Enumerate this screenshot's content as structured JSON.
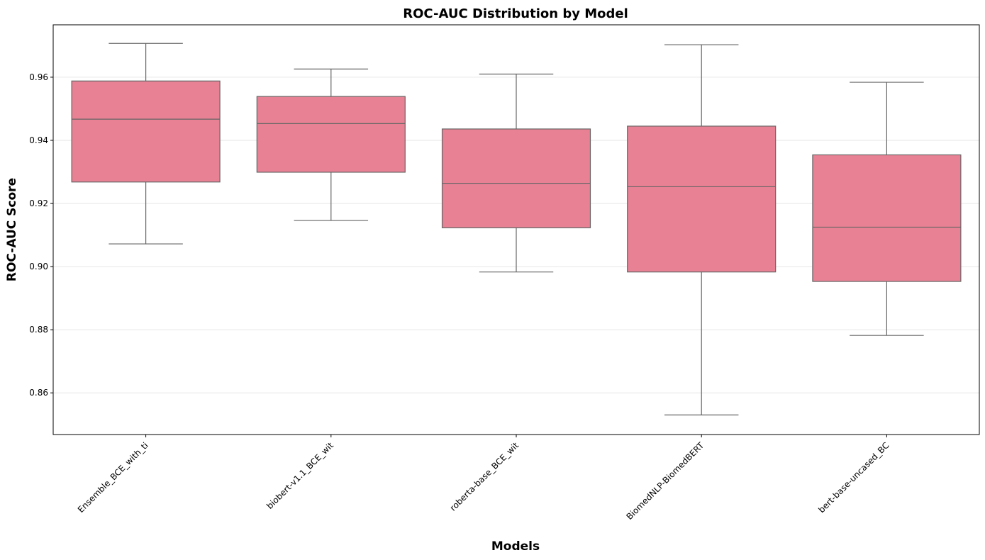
{
  "chart_data": {
    "type": "box",
    "title": "ROC-AUC Distribution by Model",
    "xlabel": "Models",
    "ylabel": "ROC-AUC Score",
    "ylim": [
      0.8468,
      0.9766
    ],
    "yticks": [
      "0.86",
      "0.88",
      "0.90",
      "0.92",
      "0.94",
      "0.96"
    ],
    "ytick_values": [
      0.86,
      0.88,
      0.9,
      0.92,
      0.94,
      0.96
    ],
    "grid": "horizontal",
    "box_color": "#e88194",
    "line_color": "#666666",
    "categories": [
      "Ensemble_BCE_with_ti",
      "biobert-v1.1_BCE_wit",
      "roberta-base_BCE_wit",
      "BiomedNLP-BiomedBERT",
      "bert-base-uncased_BC"
    ],
    "series": [
      {
        "category": "Ensemble_BCE_with_ti",
        "whisker_low": 0.9072,
        "q1": 0.9268,
        "median": 0.9467,
        "q3": 0.9588,
        "whisker_high": 0.9707
      },
      {
        "category": "biobert-v1.1_BCE_wit",
        "whisker_low": 0.9146,
        "q1": 0.9299,
        "median": 0.9453,
        "q3": 0.9539,
        "whisker_high": 0.9626
      },
      {
        "category": "roberta-base_BCE_wit",
        "whisker_low": 0.8983,
        "q1": 0.9123,
        "median": 0.9264,
        "q3": 0.9436,
        "whisker_high": 0.961
      },
      {
        "category": "BiomedNLP-BiomedBERT",
        "whisker_low": 0.853,
        "q1": 0.8983,
        "median": 0.9253,
        "q3": 0.9445,
        "whisker_high": 0.9703
      },
      {
        "category": "bert-base-uncased_BC",
        "whisker_low": 0.8782,
        "q1": 0.8953,
        "median": 0.9125,
        "q3": 0.9354,
        "whisker_high": 0.9584
      }
    ]
  }
}
